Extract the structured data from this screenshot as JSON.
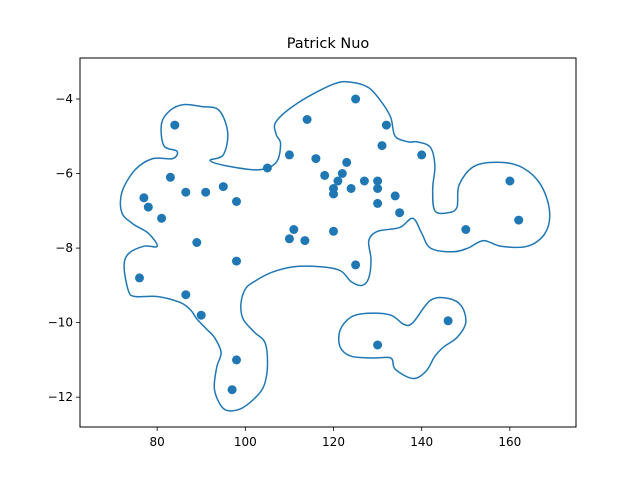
{
  "chart_data": {
    "type": "scatter",
    "title": "Patrick Nuo",
    "xlabel": "",
    "ylabel": "",
    "xlim": [
      62.5,
      175
    ],
    "ylim": [
      -12.8,
      -2.9
    ],
    "xticks": [
      80,
      100,
      120,
      140,
      160
    ],
    "yticks": [
      -4,
      -6,
      -8,
      -10,
      -12
    ],
    "xtick_labels": [
      "80",
      "100",
      "120",
      "140",
      "160"
    ],
    "ytick_labels": [
      "−4",
      "−6",
      "−8",
      "−10",
      "−12"
    ],
    "grid": false,
    "color": "#1f77b4",
    "points": [
      [
        84,
        -4.7
      ],
      [
        83,
        -6.1
      ],
      [
        86.5,
        -6.5
      ],
      [
        91,
        -6.5
      ],
      [
        95,
        -6.35
      ],
      [
        98,
        -6.75
      ],
      [
        77,
        -6.65
      ],
      [
        78,
        -6.9
      ],
      [
        81,
        -7.2
      ],
      [
        89,
        -7.85
      ],
      [
        98,
        -8.35
      ],
      [
        76,
        -8.8
      ],
      [
        86.5,
        -9.25
      ],
      [
        90,
        -9.8
      ],
      [
        98,
        -11.0
      ],
      [
        97,
        -11.8
      ],
      [
        105,
        -5.85
      ],
      [
        110,
        -5.5
      ],
      [
        114,
        -4.55
      ],
      [
        116,
        -5.6
      ],
      [
        118,
        -6.05
      ],
      [
        120,
        -6.4
      ],
      [
        121,
        -6.2
      ],
      [
        122,
        -6.0
      ],
      [
        123,
        -5.7
      ],
      [
        124,
        -6.4
      ],
      [
        120,
        -6.55
      ],
      [
        125,
        -4.0
      ],
      [
        127,
        -6.2
      ],
      [
        130,
        -6.2
      ],
      [
        130,
        -6.4
      ],
      [
        131,
        -5.25
      ],
      [
        132,
        -4.7
      ],
      [
        134,
        -6.6
      ],
      [
        135,
        -7.05
      ],
      [
        130,
        -6.8
      ],
      [
        140,
        -5.5
      ],
      [
        111,
        -7.5
      ],
      [
        110,
        -7.75
      ],
      [
        113.5,
        -7.8
      ],
      [
        120,
        -7.55
      ],
      [
        125,
        -8.45
      ],
      [
        150,
        -7.5
      ],
      [
        160,
        -6.2
      ],
      [
        162,
        -7.25
      ],
      [
        146,
        -9.95
      ],
      [
        130,
        -10.6
      ]
    ],
    "contours": [
      [
        [
          90,
          -4.2
        ],
        [
          94,
          -4.3
        ],
        [
          96,
          -4.9
        ],
        [
          95,
          -5.5
        ],
        [
          92,
          -5.65
        ],
        [
          96,
          -5.8
        ],
        [
          103,
          -5.9
        ],
        [
          107,
          -5.7
        ],
        [
          108,
          -5.2
        ],
        [
          107,
          -4.95
        ],
        [
          107,
          -4.6
        ],
        [
          112,
          -4.1
        ],
        [
          120,
          -3.6
        ],
        [
          124,
          -3.55
        ],
        [
          128,
          -3.7
        ],
        [
          131,
          -4.1
        ],
        [
          133,
          -4.5
        ],
        [
          134,
          -5.0
        ],
        [
          137,
          -5.15
        ],
        [
          139,
          -5.15
        ],
        [
          142,
          -5.3
        ],
        [
          143,
          -5.8
        ],
        [
          142.5,
          -6.4
        ],
        [
          143,
          -7.0
        ],
        [
          146,
          -7.05
        ],
        [
          148,
          -6.9
        ],
        [
          148.5,
          -6.3
        ],
        [
          152,
          -5.8
        ],
        [
          158,
          -5.7
        ],
        [
          163,
          -5.85
        ],
        [
          167,
          -6.3
        ],
        [
          169,
          -7.0
        ],
        [
          168,
          -7.6
        ],
        [
          164,
          -7.95
        ],
        [
          158,
          -7.95
        ],
        [
          154,
          -7.8
        ],
        [
          150.5,
          -8.0
        ],
        [
          147,
          -8.1
        ],
        [
          142,
          -8.0
        ],
        [
          140,
          -7.6
        ],
        [
          138,
          -7.2
        ],
        [
          135,
          -7.45
        ],
        [
          130,
          -7.55
        ],
        [
          128,
          -7.8
        ],
        [
          128.5,
          -8.3
        ],
        [
          128,
          -8.8
        ],
        [
          126.5,
          -9.0
        ],
        [
          124,
          -8.9
        ],
        [
          121.5,
          -8.6
        ],
        [
          117,
          -8.5
        ],
        [
          111,
          -8.5
        ],
        [
          106,
          -8.65
        ],
        [
          102,
          -8.9
        ],
        [
          100,
          -9.1
        ],
        [
          99,
          -9.5
        ],
        [
          99.5,
          -9.9
        ],
        [
          102,
          -10.25
        ],
        [
          104.5,
          -10.55
        ],
        [
          105,
          -11.2
        ],
        [
          104,
          -11.75
        ],
        [
          101,
          -12.15
        ],
        [
          98,
          -12.35
        ],
        [
          95,
          -12.3
        ],
        [
          93,
          -11.8
        ],
        [
          93.5,
          -11.2
        ],
        [
          94.5,
          -10.8
        ],
        [
          93,
          -10.4
        ],
        [
          91,
          -10.15
        ],
        [
          89,
          -9.9
        ],
        [
          87.5,
          -9.65
        ],
        [
          85,
          -9.45
        ],
        [
          80,
          -9.3
        ],
        [
          75,
          -9.3
        ],
        [
          73.5,
          -9.15
        ],
        [
          72.5,
          -8.5
        ],
        [
          73.5,
          -8.15
        ],
        [
          77,
          -7.95
        ],
        [
          80,
          -7.95
        ],
        [
          78,
          -7.6
        ],
        [
          74.5,
          -7.35
        ],
        [
          72,
          -7.05
        ],
        [
          72,
          -6.5
        ],
        [
          75,
          -5.9
        ],
        [
          79,
          -5.6
        ],
        [
          83.5,
          -5.6
        ],
        [
          84.5,
          -5.4
        ],
        [
          81.5,
          -5.25
        ],
        [
          81,
          -4.65
        ],
        [
          83,
          -4.3
        ],
        [
          86,
          -4.15
        ],
        [
          90,
          -4.2
        ]
      ],
      [
        [
          138,
          -10.0
        ],
        [
          142,
          -9.4
        ],
        [
          146,
          -9.35
        ],
        [
          149,
          -9.55
        ],
        [
          150,
          -10.0
        ],
        [
          148,
          -10.4
        ],
        [
          145,
          -10.65
        ],
        [
          143,
          -10.9
        ],
        [
          141,
          -11.3
        ],
        [
          138,
          -11.5
        ],
        [
          134,
          -11.25
        ],
        [
          133,
          -10.95
        ],
        [
          129,
          -10.95
        ],
        [
          124,
          -10.9
        ],
        [
          121.5,
          -10.65
        ],
        [
          121.5,
          -10.2
        ],
        [
          124,
          -9.85
        ],
        [
          128,
          -9.75
        ],
        [
          133,
          -9.8
        ],
        [
          136,
          -10.05
        ],
        [
          138,
          -10.0
        ]
      ]
    ]
  }
}
